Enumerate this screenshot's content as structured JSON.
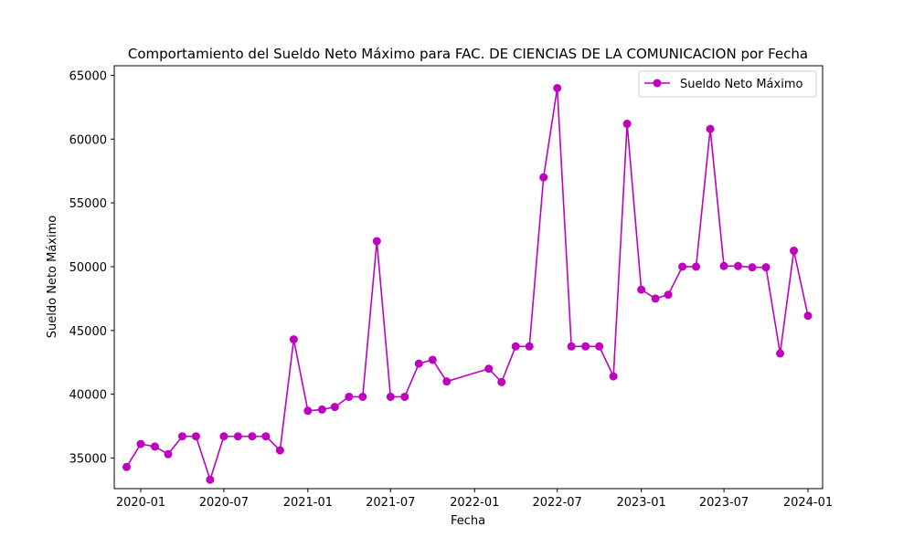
{
  "chart_data": {
    "type": "line",
    "title": "Comportamiento del Sueldo Neto Máximo para FAC. DE CIENCIAS DE LA COMUNICACION por Fecha",
    "xlabel": "Fecha",
    "ylabel": "Sueldo Neto Máximo",
    "x_ticks": [
      "2020-01",
      "2020-07",
      "2021-01",
      "2021-07",
      "2022-01",
      "2022-07",
      "2023-01",
      "2023-07",
      "2024-01"
    ],
    "y_ticks": [
      35000,
      40000,
      45000,
      50000,
      55000,
      60000,
      65000
    ],
    "ylim": [
      32600,
      65750
    ],
    "xlim": [
      "2019-11-04",
      "2024-02-02"
    ],
    "grid": false,
    "legend_position": "top-right",
    "color": "#bf00bf",
    "series": [
      {
        "name": "Sueldo Neto Máximo",
        "x": [
          "2019-12-01",
          "2020-01-01",
          "2020-02-01",
          "2020-03-01",
          "2020-04-01",
          "2020-05-01",
          "2020-06-01",
          "2020-07-01",
          "2020-08-01",
          "2020-09-01",
          "2020-10-01",
          "2020-11-01",
          "2020-12-01",
          "2021-01-01",
          "2021-02-01",
          "2021-03-01",
          "2021-04-01",
          "2021-05-01",
          "2021-06-01",
          "2021-07-01",
          "2021-08-01",
          "2021-09-01",
          "2021-10-01",
          "2021-11-01",
          "2022-02-01",
          "2022-03-01",
          "2022-04-01",
          "2022-05-01",
          "2022-06-01",
          "2022-07-01",
          "2022-08-01",
          "2022-09-01",
          "2022-10-01",
          "2022-11-01",
          "2022-12-01",
          "2023-01-01",
          "2023-02-01",
          "2023-03-01",
          "2023-04-01",
          "2023-05-01",
          "2023-06-01",
          "2023-07-01",
          "2023-08-01",
          "2023-09-01",
          "2023-10-01",
          "2023-11-01",
          "2023-12-01",
          "2024-01-01"
        ],
        "values": [
          34300,
          36100,
          35900,
          35300,
          36700,
          36700,
          33300,
          36700,
          36700,
          36700,
          36700,
          35600,
          44300,
          38700,
          38800,
          39000,
          39800,
          39800,
          52000,
          39800,
          39800,
          42400,
          42700,
          41000,
          42000,
          40950,
          43750,
          43750,
          57000,
          64000,
          43750,
          43750,
          43750,
          41400,
          61200,
          48200,
          47500,
          47800,
          50000,
          50000,
          60800,
          50050,
          50050,
          49950,
          49950,
          43200,
          51250,
          46150
        ]
      }
    ]
  }
}
